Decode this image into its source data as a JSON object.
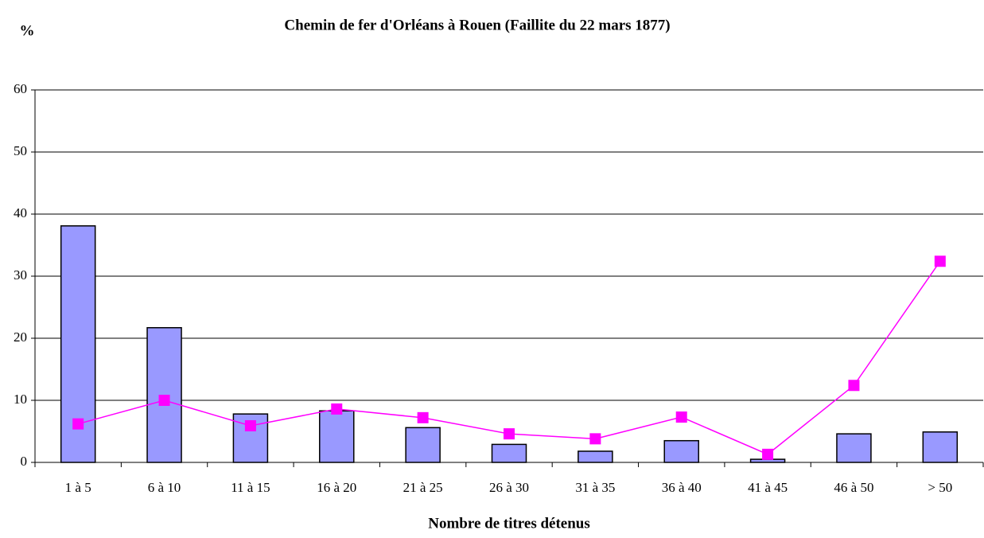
{
  "chart_data": {
    "type": "bar",
    "title": "Chemin de fer d'Orléans à Rouen (Faillite du 22 mars 1877)",
    "y_label": "%",
    "x_label": "Nombre de titres détenus",
    "categories": [
      "1 à 5",
      "6 à 10",
      "11 à 15",
      "16 à 20",
      "21 à 25",
      "26 à 30",
      "31 à 35",
      "36 à 40",
      "41 à 45",
      "46 à 50",
      "> 50"
    ],
    "series": [
      {
        "type": "bar",
        "color": "#9999ff",
        "values": [
          38.1,
          21.7,
          7.8,
          8.3,
          5.6,
          2.9,
          1.8,
          3.5,
          0.5,
          4.6,
          4.9
        ]
      },
      {
        "type": "line",
        "color": "#ff00ff",
        "values": [
          6.2,
          10.0,
          5.9,
          8.6,
          7.2,
          4.6,
          3.8,
          7.3,
          1.3,
          12.4,
          32.4
        ]
      }
    ],
    "ylim": [
      0,
      60
    ],
    "yticks": [
      0,
      10,
      20,
      30,
      40,
      50,
      60
    ],
    "grid": true
  }
}
